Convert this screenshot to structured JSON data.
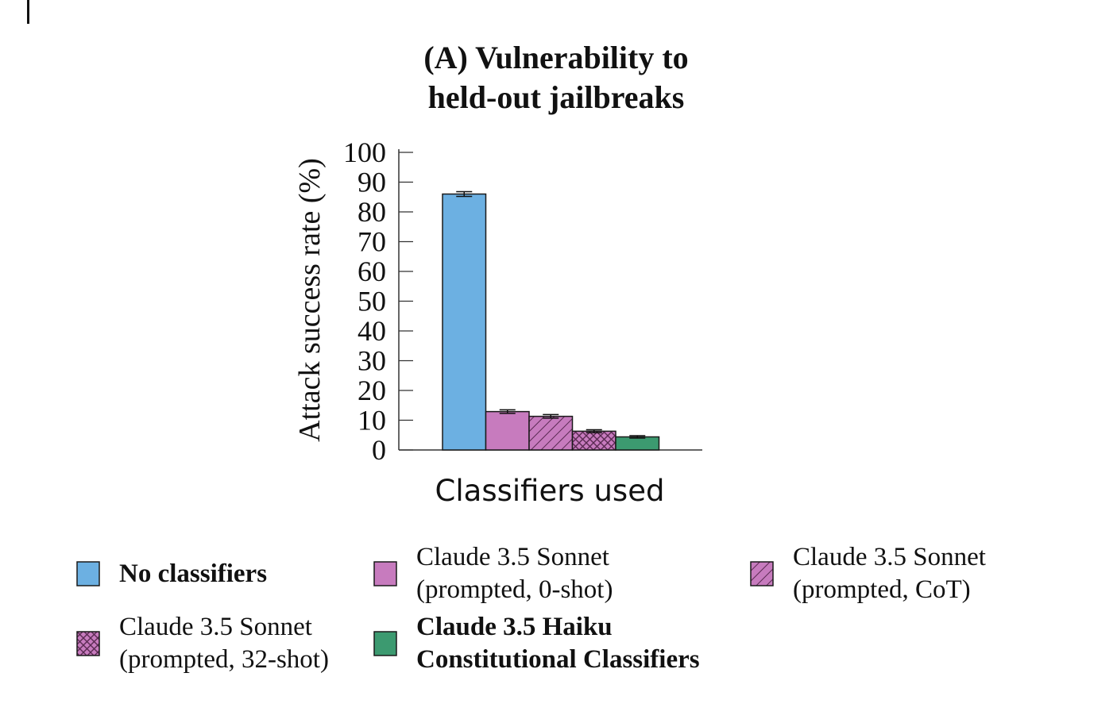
{
  "chart_data": {
    "type": "bar",
    "title": [
      "(A) Vulnerability to",
      "held-out jailbreaks"
    ],
    "ylabel": "Attack success rate (%)",
    "xlabel": "Classifiers used",
    "ylim": [
      0,
      100
    ],
    "yticks": [
      0,
      10,
      20,
      30,
      40,
      50,
      60,
      70,
      80,
      90,
      100
    ],
    "grid": false,
    "legend_position": "bottom",
    "series": [
      {
        "label_lines": [
          "No classifiers"
        ],
        "bold": true,
        "value": 86,
        "error": 0.8,
        "color": "#6cb0e2",
        "pattern": "none"
      },
      {
        "label_lines": [
          "Claude 3.5 Sonnet",
          "(prompted, 0-shot)"
        ],
        "bold": false,
        "value": 12.9,
        "error": 0.6,
        "color": "#c77bbe",
        "pattern": "none"
      },
      {
        "label_lines": [
          "Claude 3.5 Sonnet",
          "(prompted, CoT)"
        ],
        "bold": false,
        "value": 11.3,
        "error": 0.6,
        "color": "#c77bbe",
        "pattern": "diagonal"
      },
      {
        "label_lines": [
          "Claude 3.5 Sonnet",
          "(prompted, 32-shot)"
        ],
        "bold": false,
        "value": 6.3,
        "error": 0.5,
        "color": "#c77bbe",
        "pattern": "crosshatch"
      },
      {
        "label_lines": [
          "Claude 3.5 Haiku",
          "Constitutional Classifiers"
        ],
        "bold": true,
        "value": 4.4,
        "error": 0.4,
        "color": "#3c9a70",
        "pattern": "none"
      }
    ]
  }
}
